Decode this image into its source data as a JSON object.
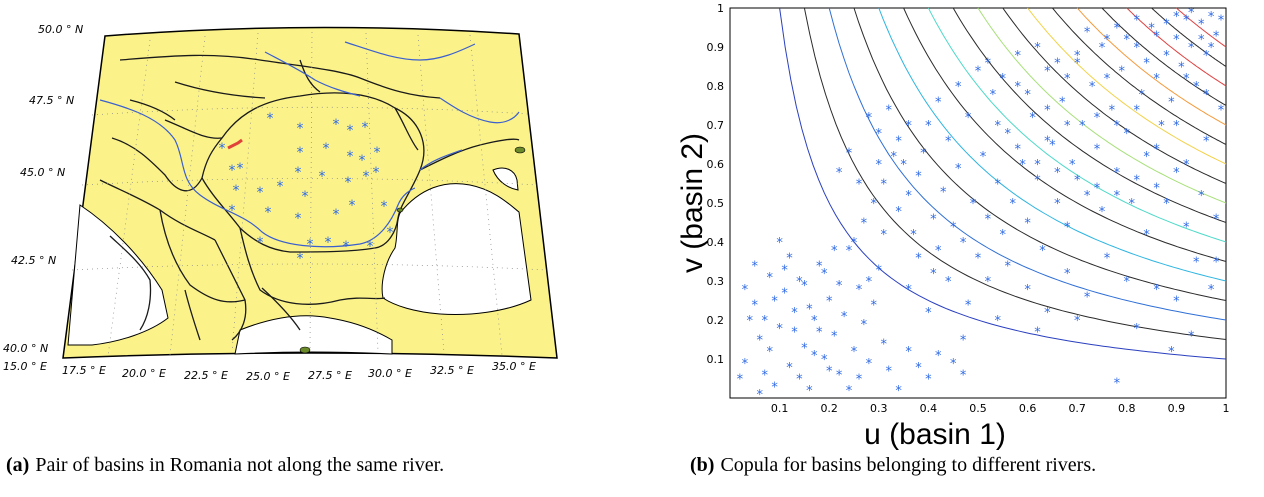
{
  "colors": {
    "land": "#fbf38a",
    "sea": "#ffffff",
    "river": "#3b5fcf",
    "border": "#1a1a1a",
    "station": "#2f6ae6",
    "pair_marker": "#e0423a",
    "contour_dark": "#2a2a2a",
    "contour_levels": [
      "#2a3fbf",
      "#2f6fd6",
      "#2fb5e0",
      "#4fd9c9",
      "#a8e07a",
      "#f2d24a",
      "#f59a3a",
      "#e04040"
    ]
  },
  "captions": {
    "a_label": "(a)",
    "a_text": "Pair of basins in Romania not along the same river.",
    "b_label": "(b)",
    "b_text": "Copula for basins belonging to different rivers."
  },
  "map": {
    "lat_labels": [
      "50.0",
      "47.5",
      "45.0",
      "42.5",
      "40.0"
    ],
    "lat_suffix": "N",
    "lon_labels": [
      "15.0",
      "17.5",
      "20.0",
      "22.5",
      "25.0",
      "27.5",
      "30.0",
      "32.5",
      "35.0"
    ],
    "lon_suffix": "E",
    "degree_symbol": "°"
  },
  "chart_data": {
    "type": "scatter",
    "xlabel": "u (basin 1)",
    "ylabel": "v (basin 2)",
    "xlim": [
      0,
      1
    ],
    "ylim": [
      0,
      1
    ],
    "x_ticks": [
      "0.1",
      "0.2",
      "0.3",
      "0.4",
      "0.5",
      "0.6",
      "0.7",
      "0.8",
      "0.9",
      "1"
    ],
    "y_ticks": [
      "0.1",
      "0.2",
      "0.3",
      "0.4",
      "0.5",
      "0.6",
      "0.7",
      "0.8",
      "0.9",
      "1"
    ],
    "contour_levels": [
      0.1,
      0.15,
      0.2,
      0.25,
      0.3,
      0.35,
      0.4,
      0.45,
      0.5,
      0.55,
      0.6,
      0.65,
      0.7,
      0.75,
      0.8,
      0.85,
      0.9
    ],
    "points": [
      [
        0.02,
        0.05
      ],
      [
        0.03,
        0.09
      ],
      [
        0.04,
        0.2
      ],
      [
        0.05,
        0.24
      ],
      [
        0.06,
        0.15
      ],
      [
        0.07,
        0.06
      ],
      [
        0.08,
        0.12
      ],
      [
        0.09,
        0.03
      ],
      [
        0.1,
        0.18
      ],
      [
        0.11,
        0.27
      ],
      [
        0.12,
        0.08
      ],
      [
        0.13,
        0.22
      ],
      [
        0.14,
        0.3
      ],
      [
        0.15,
        0.13
      ],
      [
        0.16,
        0.02
      ],
      [
        0.17,
        0.2
      ],
      [
        0.18,
        0.34
      ],
      [
        0.19,
        0.1
      ],
      [
        0.2,
        0.25
      ],
      [
        0.21,
        0.16
      ],
      [
        0.22,
        0.06
      ],
      [
        0.23,
        0.21
      ],
      [
        0.24,
        0.38
      ],
      [
        0.25,
        0.12
      ],
      [
        0.26,
        0.28
      ],
      [
        0.27,
        0.19
      ],
      [
        0.28,
        0.09
      ],
      [
        0.29,
        0.24
      ],
      [
        0.3,
        0.33
      ],
      [
        0.31,
        0.14
      ],
      [
        0.03,
        0.28
      ],
      [
        0.05,
        0.34
      ],
      [
        0.08,
        0.31
      ],
      [
        0.1,
        0.4
      ],
      [
        0.12,
        0.36
      ],
      [
        0.06,
        0.01
      ],
      [
        0.14,
        0.05
      ],
      [
        0.17,
        0.11
      ],
      [
        0.19,
        0.32
      ],
      [
        0.21,
        0.38
      ],
      [
        0.13,
        0.17
      ],
      [
        0.09,
        0.25
      ],
      [
        0.15,
        0.29
      ],
      [
        0.11,
        0.33
      ],
      [
        0.07,
        0.2
      ],
      [
        0.16,
        0.23
      ],
      [
        0.18,
        0.17
      ],
      [
        0.2,
        0.07
      ],
      [
        0.22,
        0.29
      ],
      [
        0.24,
        0.02
      ],
      [
        0.26,
        0.05
      ],
      [
        0.28,
        0.3
      ],
      [
        0.32,
        0.07
      ],
      [
        0.34,
        0.02
      ],
      [
        0.36,
        0.12
      ],
      [
        0.38,
        0.08
      ],
      [
        0.4,
        0.05
      ],
      [
        0.42,
        0.11
      ],
      [
        0.45,
        0.09
      ],
      [
        0.47,
        0.06
      ],
      [
        0.25,
        0.4
      ],
      [
        0.27,
        0.45
      ],
      [
        0.29,
        0.5
      ],
      [
        0.31,
        0.55
      ],
      [
        0.33,
        0.62
      ],
      [
        0.3,
        0.68
      ],
      [
        0.28,
        0.72
      ],
      [
        0.32,
        0.74
      ],
      [
        0.35,
        0.6
      ],
      [
        0.34,
        0.48
      ],
      [
        0.36,
        0.52
      ],
      [
        0.38,
        0.57
      ],
      [
        0.37,
        0.42
      ],
      [
        0.39,
        0.63
      ],
      [
        0.4,
        0.7
      ],
      [
        0.41,
        0.46
      ],
      [
        0.43,
        0.53
      ],
      [
        0.42,
        0.38
      ],
      [
        0.44,
        0.66
      ],
      [
        0.45,
        0.44
      ],
      [
        0.46,
        0.59
      ],
      [
        0.47,
        0.4
      ],
      [
        0.48,
        0.72
      ],
      [
        0.49,
        0.5
      ],
      [
        0.5,
        0.36
      ],
      [
        0.51,
        0.62
      ],
      [
        0.52,
        0.46
      ],
      [
        0.53,
        0.78
      ],
      [
        0.54,
        0.55
      ],
      [
        0.55,
        0.42
      ],
      [
        0.56,
        0.68
      ],
      [
        0.57,
        0.5
      ],
      [
        0.58,
        0.8
      ],
      [
        0.59,
        0.6
      ],
      [
        0.6,
        0.45
      ],
      [
        0.61,
        0.72
      ],
      [
        0.62,
        0.56
      ],
      [
        0.63,
        0.38
      ],
      [
        0.64,
        0.84
      ],
      [
        0.65,
        0.65
      ],
      [
        0.66,
        0.5
      ],
      [
        0.67,
        0.76
      ],
      [
        0.68,
        0.44
      ],
      [
        0.69,
        0.6
      ],
      [
        0.7,
        0.88
      ],
      [
        0.71,
        0.7
      ],
      [
        0.72,
        0.52
      ],
      [
        0.73,
        0.8
      ],
      [
        0.74,
        0.64
      ],
      [
        0.75,
        0.48
      ],
      [
        0.76,
        0.92
      ],
      [
        0.77,
        0.74
      ],
      [
        0.78,
        0.58
      ],
      [
        0.79,
        0.84
      ],
      [
        0.8,
        0.68
      ],
      [
        0.81,
        0.5
      ],
      [
        0.82,
        0.9
      ],
      [
        0.83,
        0.78
      ],
      [
        0.84,
        0.62
      ],
      [
        0.85,
        0.95
      ],
      [
        0.86,
        0.82
      ],
      [
        0.87,
        0.7
      ],
      [
        0.88,
        0.88
      ],
      [
        0.89,
        0.76
      ],
      [
        0.9,
        0.92
      ],
      [
        0.91,
        0.85
      ],
      [
        0.92,
        0.97
      ],
      [
        0.93,
        0.9
      ],
      [
        0.94,
        0.8
      ],
      [
        0.95,
        0.96
      ],
      [
        0.96,
        0.88
      ],
      [
        0.97,
        0.98
      ],
      [
        0.98,
        0.93
      ],
      [
        0.99,
        0.97
      ],
      [
        0.93,
        0.99
      ],
      [
        0.95,
        0.92
      ],
      [
        0.97,
        0.9
      ],
      [
        0.9,
        0.98
      ],
      [
        0.88,
        0.96
      ],
      [
        0.86,
        0.93
      ],
      [
        0.78,
        0.95
      ],
      [
        0.8,
        0.92
      ],
      [
        0.82,
        0.97
      ],
      [
        0.75,
        0.9
      ],
      [
        0.7,
        0.86
      ],
      [
        0.72,
        0.94
      ],
      [
        0.66,
        0.86
      ],
      [
        0.62,
        0.9
      ],
      [
        0.58,
        0.88
      ],
      [
        0.55,
        0.82
      ],
      [
        0.52,
        0.86
      ],
      [
        0.6,
        0.78
      ],
      [
        0.64,
        0.74
      ],
      [
        0.68,
        0.82
      ],
      [
        0.74,
        0.72
      ],
      [
        0.78,
        0.7
      ],
      [
        0.82,
        0.74
      ],
      [
        0.86,
        0.64
      ],
      [
        0.9,
        0.7
      ],
      [
        0.92,
        0.6
      ],
      [
        0.88,
        0.5
      ],
      [
        0.84,
        0.42
      ],
      [
        0.8,
        0.3
      ],
      [
        0.76,
        0.36
      ],
      [
        0.72,
        0.26
      ],
      [
        0.68,
        0.32
      ],
      [
        0.64,
        0.22
      ],
      [
        0.6,
        0.28
      ],
      [
        0.56,
        0.34
      ],
      [
        0.52,
        0.3
      ],
      [
        0.48,
        0.24
      ],
      [
        0.44,
        0.3
      ],
      [
        0.4,
        0.22
      ],
      [
        0.36,
        0.28
      ],
      [
        0.92,
        0.44
      ],
      [
        0.95,
        0.52
      ],
      [
        0.98,
        0.46
      ],
      [
        0.96,
        0.66
      ],
      [
        0.99,
        0.74
      ],
      [
        0.94,
        0.35
      ],
      [
        0.86,
        0.28
      ],
      [
        0.9,
        0.25
      ],
      [
        0.82,
        0.18
      ],
      [
        0.78,
        0.04
      ],
      [
        0.7,
        0.2
      ],
      [
        0.62,
        0.17
      ],
      [
        0.54,
        0.2
      ],
      [
        0.47,
        0.15
      ],
      [
        0.41,
        0.32
      ],
      [
        0.38,
        0.36
      ],
      [
        0.31,
        0.42
      ],
      [
        0.26,
        0.55
      ],
      [
        0.24,
        0.63
      ],
      [
        0.22,
        0.58
      ],
      [
        0.3,
        0.6
      ],
      [
        0.34,
        0.66
      ],
      [
        0.36,
        0.7
      ],
      [
        0.42,
        0.76
      ],
      [
        0.46,
        0.8
      ],
      [
        0.5,
        0.84
      ],
      [
        0.54,
        0.7
      ],
      [
        0.58,
        0.64
      ],
      [
        0.62,
        0.6
      ],
      [
        0.66,
        0.58
      ],
      [
        0.7,
        0.56
      ],
      [
        0.74,
        0.54
      ],
      [
        0.78,
        0.52
      ],
      [
        0.82,
        0.56
      ],
      [
        0.86,
        0.54
      ],
      [
        0.9,
        0.58
      ],
      [
        0.98,
        0.35
      ],
      [
        0.97,
        0.28
      ],
      [
        0.93,
        0.16
      ],
      [
        0.89,
        0.12
      ],
      [
        0.96,
        0.78
      ],
      [
        0.92,
        0.82
      ],
      [
        0.84,
        0.86
      ],
      [
        0.76,
        0.82
      ],
      [
        0.68,
        0.7
      ],
      [
        0.64,
        0.66
      ]
    ]
  }
}
